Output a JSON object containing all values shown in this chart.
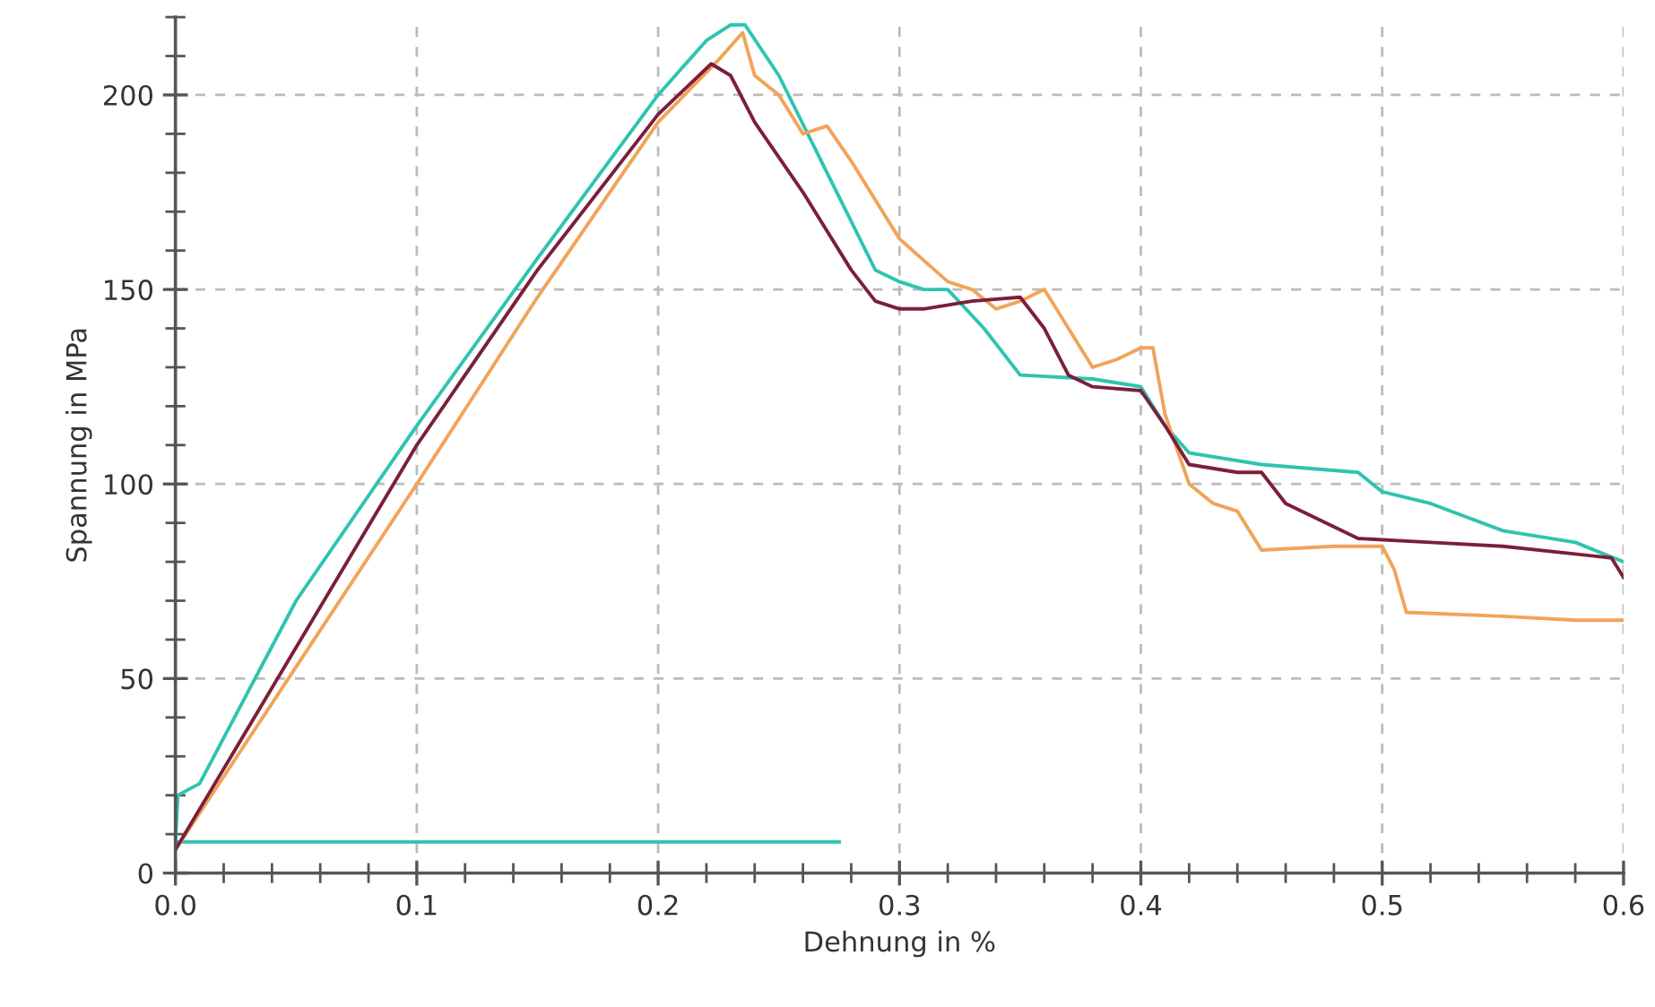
{
  "chart_data": {
    "type": "line",
    "xlabel": "Dehnung in %",
    "ylabel": "Spannung in MPa",
    "xlim": [
      0,
      0.6
    ],
    "ylim": [
      0,
      220
    ],
    "xticks": [
      {
        "value": 0,
        "label": "0.0"
      },
      {
        "value": 0.02,
        "label": null
      },
      {
        "value": 0.04,
        "label": null
      },
      {
        "value": 0.06,
        "label": null
      },
      {
        "value": 0.08,
        "label": null
      },
      {
        "value": 0.1,
        "label": "0.1"
      },
      {
        "value": 0.12,
        "label": null
      },
      {
        "value": 0.14,
        "label": null
      },
      {
        "value": 0.16,
        "label": null
      },
      {
        "value": 0.18,
        "label": null
      },
      {
        "value": 0.2,
        "label": "0.2"
      },
      {
        "value": 0.22,
        "label": null
      },
      {
        "value": 0.24,
        "label": null
      },
      {
        "value": 0.26,
        "label": null
      },
      {
        "value": 0.28,
        "label": null
      },
      {
        "value": 0.3,
        "label": "0.3"
      },
      {
        "value": 0.32,
        "label": null
      },
      {
        "value": 0.34,
        "label": null
      },
      {
        "value": 0.36,
        "label": null
      },
      {
        "value": 0.38,
        "label": null
      },
      {
        "value": 0.4,
        "label": "0.4"
      },
      {
        "value": 0.42,
        "label": null
      },
      {
        "value": 0.44,
        "label": null
      },
      {
        "value": 0.46,
        "label": null
      },
      {
        "value": 0.48,
        "label": null
      },
      {
        "value": 0.5,
        "label": "0.5"
      },
      {
        "value": 0.52,
        "label": null
      },
      {
        "value": 0.54,
        "label": null
      },
      {
        "value": 0.56,
        "label": null
      },
      {
        "value": 0.58,
        "label": null
      },
      {
        "value": 0.6,
        "label": "0.6"
      }
    ],
    "yticks": [
      0,
      {
        "value": 10,
        "label": null
      },
      {
        "value": 20,
        "label": null
      },
      {
        "value": 30,
        "label": null
      },
      {
        "value": 40,
        "label": null
      },
      50,
      {
        "value": 60,
        "label": null
      },
      {
        "value": 70,
        "label": null
      },
      {
        "value": 80,
        "label": null
      },
      {
        "value": 90,
        "label": null
      },
      100,
      {
        "value": 110,
        "label": null
      },
      {
        "value": 120,
        "label": null
      },
      {
        "value": 130,
        "label": null
      },
      {
        "value": 140,
        "label": null
      },
      150,
      {
        "value": 160,
        "label": null
      },
      {
        "value": 170,
        "label": null
      },
      {
        "value": 180,
        "label": null
      },
      {
        "value": 190,
        "label": null
      },
      200,
      {
        "value": 210,
        "label": null
      },
      {
        "value": 220,
        "label": null
      }
    ],
    "grid": true,
    "line_style": "solid",
    "marker": "none",
    "legend": false,
    "series": [
      {
        "color": "#2ec4b0",
        "x": [
          0,
          0.001,
          0.01,
          0.05,
          0.1,
          0.15,
          0.2,
          0.22,
          0.23,
          0.236,
          0.25,
          0.27,
          0.29,
          0.3,
          0.31,
          0.32,
          0.335,
          0.35,
          0.38,
          0.4,
          0.41,
          0.42,
          0.45,
          0.49,
          0.5,
          0.52,
          0.55,
          0.58,
          0.6
        ],
        "values": [
          8,
          20,
          23,
          70,
          115,
          158,
          200,
          214,
          218,
          218,
          205,
          180,
          155,
          152,
          150,
          150,
          140,
          128,
          127,
          125,
          115,
          108,
          105,
          103,
          98,
          95,
          88,
          85,
          80
        ]
      },
      {
        "color": "#2ec4b0",
        "x": [
          0,
          0.275
        ],
        "values": [
          8,
          8
        ]
      },
      {
        "color": "#f2a35a",
        "x": [
          0,
          0.1,
          0.15,
          0.2,
          0.225,
          0.235,
          0.24,
          0.25,
          0.26,
          0.27,
          0.28,
          0.3,
          0.32,
          0.33,
          0.34,
          0.35,
          0.36,
          0.37,
          0.38,
          0.39,
          0.4,
          0.405,
          0.41,
          0.42,
          0.43,
          0.44,
          0.45,
          0.48,
          0.5,
          0.505,
          0.51,
          0.55,
          0.58,
          0.6
        ],
        "values": [
          6,
          100,
          148,
          193,
          209,
          216,
          205,
          200,
          190,
          192,
          183,
          163,
          152,
          150,
          145,
          147,
          150,
          140,
          130,
          132,
          135,
          135,
          118,
          100,
          95,
          93,
          83,
          84,
          84,
          78,
          67,
          66,
          65,
          65
        ]
      },
      {
        "color": "#7b1f3a",
        "x": [
          0,
          0.1,
          0.15,
          0.2,
          0.222,
          0.23,
          0.24,
          0.26,
          0.28,
          0.29,
          0.3,
          0.31,
          0.33,
          0.35,
          0.36,
          0.37,
          0.38,
          0.4,
          0.41,
          0.42,
          0.44,
          0.45,
          0.46,
          0.47,
          0.49,
          0.52,
          0.55,
          0.58,
          0.595,
          0.6
        ],
        "values": [
          6,
          110,
          155,
          195,
          208,
          205,
          193,
          175,
          155,
          147,
          145,
          145,
          147,
          148,
          140,
          128,
          125,
          124,
          115,
          105,
          103,
          103,
          95,
          92,
          86,
          85,
          84,
          82,
          81,
          76
        ]
      }
    ]
  }
}
